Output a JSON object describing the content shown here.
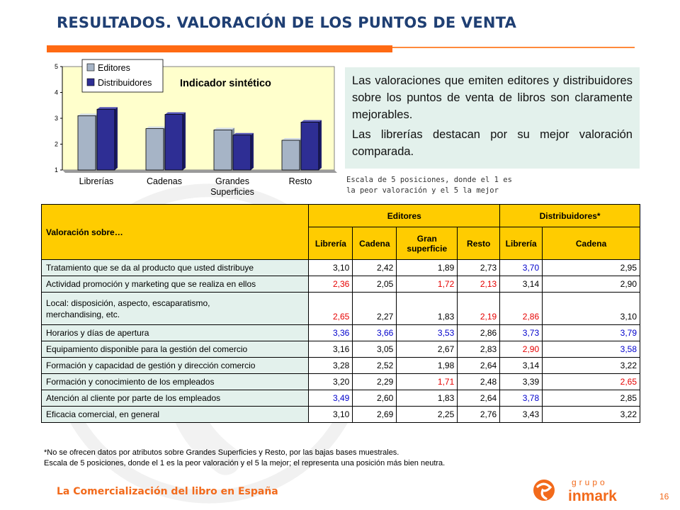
{
  "title": "RESULTADOS. VALORACIÓN DE LOS PUNTOS DE VENTA",
  "info": {
    "paragraph1": "Las valoraciones que emiten editores y distribuidores sobre los puntos de venta de libros son claramente mejorables.",
    "paragraph2": "Las librerías destacan por su mejor valoración comparada."
  },
  "scale_note": {
    "line1": "Escala de 5 posiciones, donde el 1 es",
    "line2": "la peor valoración y el 5 la mejor"
  },
  "chart_data": {
    "type": "bar",
    "title": "Indicador sintético",
    "categories": [
      "Librerías",
      "Cadenas",
      "Grandes Superficies",
      "Resto"
    ],
    "category_lines": [
      [
        "Librerías"
      ],
      [
        "Cadenas"
      ],
      [
        "Grandes",
        "Superficies"
      ],
      [
        "Resto"
      ]
    ],
    "series": [
      {
        "name": "Editores",
        "color": "#a6b4c6",
        "values": [
          3.1,
          2.6,
          2.55,
          2.15
        ]
      },
      {
        "name": "Distribuidores",
        "color": "#2e2e94",
        "values": [
          3.35,
          3.15,
          2.35,
          2.85
        ]
      }
    ],
    "ylim": [
      1,
      5
    ],
    "yticks": [
      "1",
      "2",
      "3",
      "4",
      "5"
    ],
    "legend": "top-left",
    "grid": false
  },
  "table": {
    "corner_label": "Valoración sobre…",
    "group_headers": [
      "Editores",
      "Distribuidores*"
    ],
    "columns": [
      "Librería",
      "Cadena",
      "Gran superficie",
      "Resto",
      "Librería",
      "Cadena"
    ],
    "rows": [
      {
        "label": [
          "Tratamiento que se da al producto que usted distribuye"
        ],
        "values": [
          "3,10",
          "2,42",
          "1,89",
          "2,73",
          "3,70",
          "2,95"
        ],
        "colors": [
          "neu",
          "neu",
          "neu",
          "neu",
          "pos",
          "neu"
        ]
      },
      {
        "label": [
          "Actividad promoción y marketing que se realiza en ellos"
        ],
        "values": [
          "2,36",
          "2,05",
          "1,72",
          "2,13",
          "3,14",
          "2,90"
        ],
        "colors": [
          "neg",
          "neu",
          "neg",
          "neg",
          "neu",
          "neu"
        ]
      },
      {
        "label": [
          "Local: disposición, aspecto, escaparatismo,",
          "merchandising, etc."
        ],
        "values": [
          "2,65",
          "2,27",
          "1,83",
          "2,19",
          "2,86",
          "3,10"
        ],
        "colors": [
          "neg",
          "neu",
          "neu",
          "neg",
          "neg",
          "neu"
        ]
      },
      {
        "label": [
          "Horarios y días de apertura"
        ],
        "values": [
          "3,36",
          "3,66",
          "3,53",
          "2,86",
          "3,73",
          "3,79"
        ],
        "colors": [
          "pos",
          "pos",
          "pos",
          "neu",
          "pos",
          "pos"
        ]
      },
      {
        "label": [
          "Equipamiento disponible para la gestión del comercio"
        ],
        "values": [
          "3,16",
          "3,05",
          "2,67",
          "2,83",
          "2,90",
          "3,58"
        ],
        "colors": [
          "neu",
          "neu",
          "neu",
          "neu",
          "neg",
          "pos"
        ]
      },
      {
        "label": [
          "Formación y capacidad de gestión y dirección comercio"
        ],
        "values": [
          "3,28",
          "2,52",
          "1,98",
          "2,64",
          "3,14",
          "3,22"
        ],
        "colors": [
          "neu",
          "neu",
          "neu",
          "neu",
          "neu",
          "neu"
        ]
      },
      {
        "label": [
          "Formación y conocimiento de los empleados"
        ],
        "values": [
          "3,20",
          "2,29",
          "1,71",
          "2,48",
          "3,39",
          "2,65"
        ],
        "colors": [
          "neu",
          "neu",
          "neg",
          "neu",
          "neu",
          "neg"
        ]
      },
      {
        "label": [
          "Atención al cliente por parte de los empleados"
        ],
        "values": [
          "3,49",
          "2,60",
          "1,83",
          "2,64",
          "3,78",
          "2,85"
        ],
        "colors": [
          "pos",
          "neu",
          "neu",
          "neu",
          "pos",
          "neu"
        ]
      },
      {
        "label": [
          "Eficacia comercial, en general"
        ],
        "values": [
          "3,10",
          "2,69",
          "2,25",
          "2,76",
          "3,43",
          "3,22"
        ],
        "colors": [
          "neu",
          "neu",
          "neu",
          "neu",
          "neu",
          "neu"
        ]
      }
    ]
  },
  "footnotes": [
    "*No se ofrecen datos por atributos sobre Grandes Superficies y Resto, por las bajas bases muestrales.",
    " Escala de 5 posiciones, donde el 1 es la peor valoración y el 5 la mejor; el representa una posición más bien neutra."
  ],
  "footer": {
    "text": "La Comercialización del libro en España",
    "brand_top": "grupo",
    "brand_name": "inmark",
    "page_number": "16"
  },
  "colors": {
    "title": "#1f3f73",
    "accent_orange": "#ff6a13",
    "table_header": "#ffcc00",
    "row_label_bg": "#e3f1ec",
    "negative": "#e60000",
    "positive": "#0000cc"
  }
}
